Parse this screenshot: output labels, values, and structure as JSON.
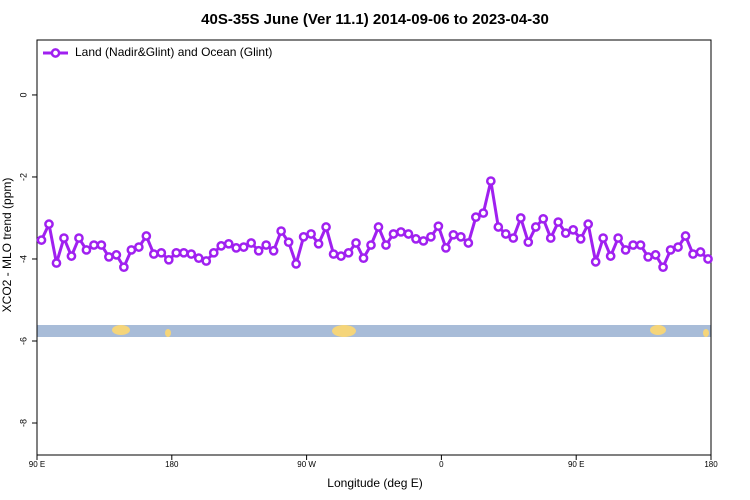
{
  "chart_data": {
    "type": "line",
    "title": "40S-35S June (Ver 11.1)   2014-09-06 to 2023-04-30",
    "x_label": "Longitude (deg E)",
    "y_label": "XCO2 - MLO trend (ppm)",
    "x": [
      93,
      98,
      103,
      108,
      113,
      118,
      123,
      128,
      133,
      138,
      143,
      148,
      153,
      158,
      163,
      168,
      173,
      178,
      183,
      188,
      193,
      198,
      203,
      208,
      213,
      218,
      223,
      228,
      233,
      238,
      243,
      248,
      253,
      258,
      263,
      268,
      273,
      278,
      283,
      288,
      293,
      298,
      303,
      308,
      313,
      318,
      323,
      328,
      333,
      338,
      343,
      348,
      353,
      358,
      363,
      368,
      373,
      378,
      383,
      388,
      393,
      398,
      403,
      408,
      413,
      418,
      423,
      428,
      433,
      438,
      443,
      448,
      453,
      458,
      463,
      468,
      473,
      478,
      483,
      488,
      493,
      498,
      503,
      508,
      513,
      518,
      523,
      528,
      533,
      538
    ],
    "series": [
      {
        "name": "Land (Nadir&Glint) and Ocean (Glint)",
        "color": "#a020f0",
        "values": [
          -3.54,
          -3.15,
          -4.1,
          -3.49,
          -3.93,
          -3.49,
          -3.78,
          -3.66,
          -3.66,
          -3.95,
          -3.9,
          -4.2,
          -3.78,
          -3.71,
          -3.44,
          -3.88,
          -3.85,
          -4.02,
          -3.85,
          -3.85,
          -3.88,
          -3.98,
          -4.05,
          -3.85,
          -3.68,
          -3.63,
          -3.73,
          -3.71,
          -3.61,
          -3.8,
          -3.66,
          -3.8,
          -3.32,
          -3.59,
          -4.12,
          -3.46,
          -3.39,
          -3.63,
          -3.22,
          -3.88,
          -3.93,
          -3.85,
          -3.61,
          -3.98,
          -3.66,
          -3.22,
          -3.66,
          -3.39,
          -3.34,
          -3.39,
          -3.51,
          -3.56,
          -3.46,
          -3.2,
          -3.73,
          -3.41,
          -3.46,
          -3.61,
          -2.98,
          -2.88,
          -2.1,
          -3.22,
          -3.39,
          -3.49,
          -3.0,
          -3.59,
          -3.22,
          -3.02,
          -3.49,
          -3.1,
          -3.37,
          -3.29,
          -3.51,
          -3.15,
          -4.07,
          -3.49,
          -3.93,
          -3.49,
          -3.78,
          -3.66,
          -3.66,
          -3.95,
          -3.9,
          -4.2,
          -3.78,
          -3.71,
          -3.44,
          -3.88,
          -3.83,
          -4.0
        ]
      }
    ],
    "xlim": [
      90,
      540
    ],
    "xticks": [
      {
        "value": 90,
        "label": "90 E"
      },
      {
        "value": 180,
        "label": "180"
      },
      {
        "value": 270,
        "label": "90 W"
      },
      {
        "value": 360,
        "label": "0"
      },
      {
        "value": 450,
        "label": "90 E"
      },
      {
        "value": 540,
        "label": "180"
      }
    ],
    "ylim": [
      -8.78,
      1.34
    ],
    "yticks": [
      0,
      -2,
      -4,
      -6,
      -8
    ],
    "legend": "top-left",
    "grid": false
  }
}
